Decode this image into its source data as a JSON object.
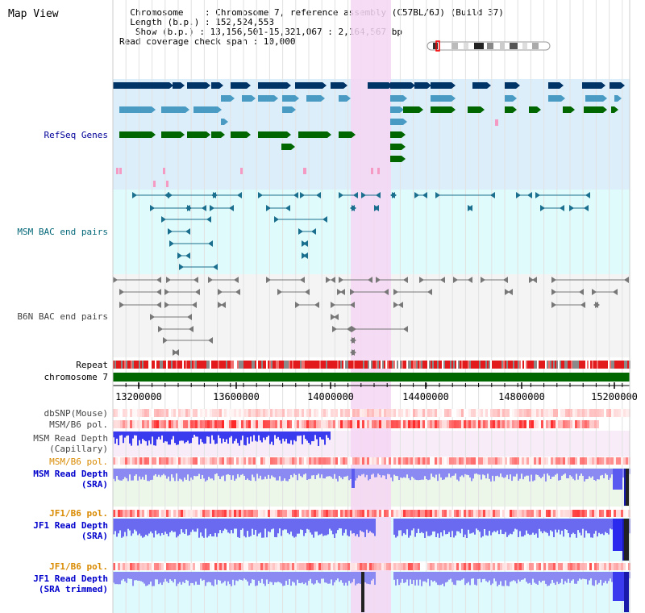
{
  "app": {
    "title": "Map View"
  },
  "info": {
    "line1": "  Chromosome    : Chromosome 7, reference assembly (C57BL/6J) (Build 37)",
    "line2": "  Length (b.p.) : 152,524,553",
    "line3": "   Show (b.p.) : 13,156,501-15,321,067 : 2,164,567 bp",
    "line4": "Read coverage check span : 10,000"
  },
  "tracks": {
    "refseq": "RefSeq Genes",
    "msm_bac": "MSM BAC end pairs",
    "b6n_bac": "B6N BAC end pairs",
    "repeat": "Repeat",
    "chromosome": "chromosome 7",
    "dbsnp": "dbSNP(Mouse)",
    "msm_b6_pol": "MSM/B6 pol.",
    "msm_depth_cap": "MSM Read Depth\n(Capillary)",
    "msm_b6_pol2": "MSM/B6 pol.",
    "msm_depth_sra": "MSM Read Depth\n(SRA)",
    "jf1_b6_pol": "JF1/B6 pol.",
    "jf1_depth_sra": "JF1 Read Depth\n(SRA)",
    "jf1_b6_pol2": "JF1/B6 pol.",
    "jf1_depth_trim": "JF1 Read Depth\n(SRA trimmed)"
  },
  "axis": {
    "ticks": [
      "13200000",
      "13600000",
      "14000000",
      "14400000",
      "14800000",
      "15200000"
    ]
  },
  "colors": {
    "refseq_bg": "#dbeefa",
    "bac_bg": "#e0fbfb",
    "highlight": "#f6d6f3",
    "chromosome": "#006600",
    "dark_blue": "#003366",
    "mid_blue": "#4a9bc4",
    "green": "#006600",
    "teal": "#1a6f8f",
    "gray": "#777777"
  }
}
